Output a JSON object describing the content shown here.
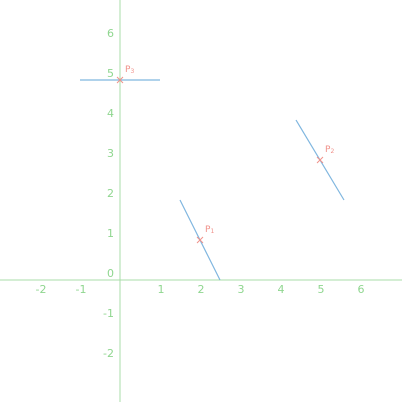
{
  "colors": {
    "axis": "#a8dca8",
    "tick_label": "#8fd68f",
    "segment": "#7fb6df",
    "point": "#f0918a",
    "background": "#ffffff"
  },
  "chart_data": {
    "type": "diagram",
    "axes": {
      "x_ticks": [
        -2,
        -1,
        0,
        1,
        2,
        3,
        4,
        5,
        6
      ],
      "y_ticks": [
        -2,
        -1,
        0,
        1,
        2,
        3,
        4,
        5,
        6
      ],
      "x_tick_labels": [
        "-2",
        "-1",
        "1",
        "2",
        "3",
        "4",
        "5",
        "6"
      ],
      "y_tick_labels": [
        "6",
        "5",
        "4",
        "3",
        "2",
        "1",
        "0",
        "-1",
        "-2"
      ]
    },
    "points": [
      {
        "letter": "P",
        "sub": "1",
        "x": 2,
        "y": 1
      },
      {
        "letter": "P",
        "sub": "2",
        "x": 5,
        "y": 3
      },
      {
        "letter": "P",
        "sub": "3",
        "x": 0,
        "y": 5
      }
    ],
    "segments": [
      {
        "x1": 1.5,
        "y1": 2,
        "x2": 2.5,
        "y2": 0
      },
      {
        "x1": 4.4,
        "y1": 4,
        "x2": 5.6,
        "y2": 2
      },
      {
        "x1": -1,
        "y1": 5,
        "x2": 1,
        "y2": 5
      }
    ]
  }
}
